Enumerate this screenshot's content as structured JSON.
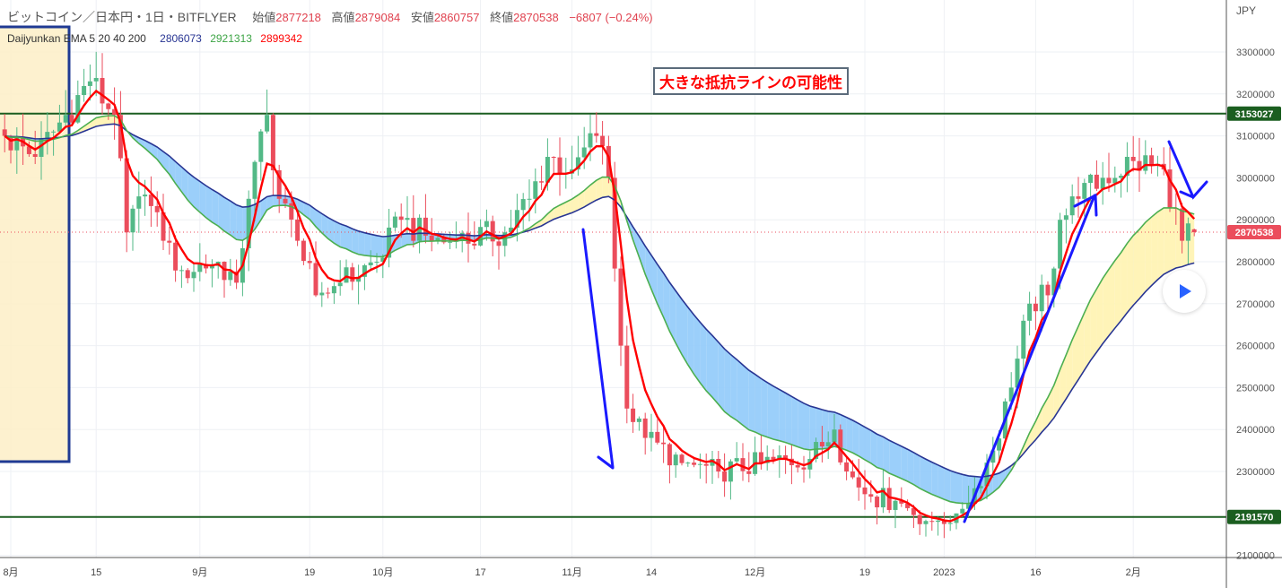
{
  "header": {
    "symbol": "ビットコイン／日本円・1日・BITFLYER",
    "open_label": "始値",
    "open": "2877218",
    "high_label": "高値",
    "high": "2879084",
    "low_label": "安値",
    "low": "2860757",
    "close_label": "終値",
    "close": "2870538",
    "change": "−6807 (−0.24%)"
  },
  "indicator": {
    "name": "Daijyunkan",
    "label": "EMA 5 20 40 200",
    "v1": "2806073",
    "v2": "2921313",
    "v3": "2899342"
  },
  "annotation": "大きな抵抗ライン の可能性",
  "annotation_text": "大きな抵抗ラインの可能性",
  "play_button": "play-icon",
  "chart_data": {
    "type": "candlestick",
    "currency": "JPY",
    "ylim": [
      2100000,
      3300000
    ],
    "y_ticks": [
      "3300000",
      "3200000",
      "3100000",
      "3000000",
      "2900000",
      "2800000",
      "2700000",
      "2600000",
      "2500000",
      "2400000",
      "2300000",
      "2100000"
    ],
    "x_ticks": [
      {
        "date": "2022-08-01",
        "label": "8月"
      },
      {
        "date": "2022-08-15",
        "label": "15"
      },
      {
        "date": "2022-09-01",
        "label": "9月"
      },
      {
        "date": "2022-09-19",
        "label": "19"
      },
      {
        "date": "2022-10-01",
        "label": "10月"
      },
      {
        "date": "2022-10-17",
        "label": "17"
      },
      {
        "date": "2022-11-01",
        "label": "11月"
      },
      {
        "date": "2022-11-14",
        "label": "14"
      },
      {
        "date": "2022-12-01",
        "label": "12月"
      },
      {
        "date": "2022-12-19",
        "label": "19"
      },
      {
        "date": "2023-01-01",
        "label": "2023"
      },
      {
        "date": "2023-01-16",
        "label": "16"
      },
      {
        "date": "2023-02-01",
        "label": "2月"
      }
    ],
    "date_range": [
      "2022-07-31",
      "2023-02-11"
    ],
    "close_keypoints": [
      [
        "2022-07-31",
        3100000
      ],
      [
        "2022-08-05",
        3050000
      ],
      [
        "2022-08-10",
        3150000
      ],
      [
        "2022-08-14",
        3230000
      ],
      [
        "2022-08-18",
        3150000
      ],
      [
        "2022-08-20",
        2870000
      ],
      [
        "2022-08-23",
        2960000
      ],
      [
        "2022-08-26",
        2850000
      ],
      [
        "2022-08-29",
        2780000
      ],
      [
        "2022-09-04",
        2800000
      ],
      [
        "2022-09-07",
        2750000
      ],
      [
        "2022-09-09",
        2950000
      ],
      [
        "2022-09-12",
        3150000
      ],
      [
        "2022-09-14",
        2950000
      ],
      [
        "2022-09-17",
        2850000
      ],
      [
        "2022-09-20",
        2720000
      ],
      [
        "2022-09-24",
        2750000
      ],
      [
        "2022-09-30",
        2800000
      ],
      [
        "2022-10-04",
        2900000
      ],
      [
        "2022-10-09",
        2850000
      ],
      [
        "2022-10-13",
        2850000
      ],
      [
        "2022-10-21",
        2870000
      ],
      [
        "2022-10-25",
        2950000
      ],
      [
        "2022-10-28",
        3050000
      ],
      [
        "2022-11-01",
        3020000
      ],
      [
        "2022-11-05",
        3100000
      ],
      [
        "2022-11-07",
        3000000
      ],
      [
        "2022-11-09",
        2600000
      ],
      [
        "2022-11-10",
        2450000
      ],
      [
        "2022-11-13",
        2380000
      ],
      [
        "2022-11-19",
        2320000
      ],
      [
        "2022-11-25",
        2300000
      ],
      [
        "2022-12-02",
        2320000
      ],
      [
        "2022-12-10",
        2330000
      ],
      [
        "2022-12-14",
        2400000
      ],
      [
        "2022-12-16",
        2300000
      ],
      [
        "2022-12-20",
        2240000
      ],
      [
        "2022-12-24",
        2230000
      ],
      [
        "2022-12-30",
        2180000
      ],
      [
        "2023-01-03",
        2200000
      ],
      [
        "2023-01-06",
        2260000
      ],
      [
        "2023-01-09",
        2350000
      ],
      [
        "2023-01-12",
        2500000
      ],
      [
        "2023-01-15",
        2700000
      ],
      [
        "2023-01-18",
        2720000
      ],
      [
        "2023-01-20",
        2900000
      ],
      [
        "2023-01-23",
        2950000
      ],
      [
        "2023-01-27",
        3000000
      ],
      [
        "2023-02-01",
        3040000
      ],
      [
        "2023-02-06",
        3020000
      ],
      [
        "2023-02-09",
        2850000
      ],
      [
        "2023-02-11",
        2870538
      ]
    ],
    "last_candle": {
      "open": 2877218,
      "high": 2879084,
      "low": 2860757,
      "close": 2870538
    },
    "ema_periods": [
      5,
      20,
      40
    ],
    "horizontal_levels": [
      3153027,
      2191570
    ],
    "current_price": 2870538,
    "colors": {
      "up": "#53b987",
      "down": "#eb4d5c",
      "ema5": "#ff0000",
      "ema20": "#4caf50",
      "ema40": "#283593",
      "fill_bull": "#fff3b0",
      "fill_bear": "#90caf9",
      "level": "#1b5e20",
      "arrow": "#1a1aff"
    }
  }
}
